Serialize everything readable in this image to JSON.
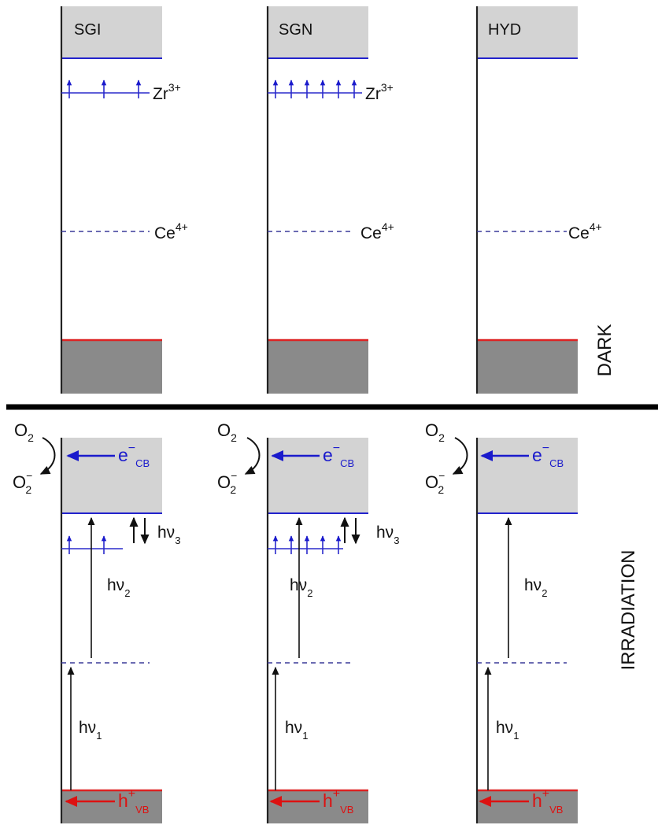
{
  "colors": {
    "conduction_band": "#d3d3d3",
    "valence_band": "#8a8a8a",
    "cb_edge": "#2222cc",
    "vb_edge": "#dd2222",
    "ce_level": "#3a3a99",
    "zr_level": "#2a2acc",
    "text": "#111111"
  },
  "samples": [
    {
      "name": "SGI",
      "zr_sites": 3
    },
    {
      "name": "SGN",
      "zr_sites": 6
    },
    {
      "name": "HYD",
      "zr_sites": 0
    }
  ],
  "levels": {
    "zr": {
      "base": "Zr",
      "sup": "3+"
    },
    "ce": {
      "base": "Ce",
      "sup": "4+"
    }
  },
  "panels": {
    "dark": "DARK",
    "irradiation": "IRRADIATION"
  },
  "labels": {
    "o2": {
      "base": "O",
      "sub": "2"
    },
    "o2_minus": {
      "base": "O",
      "sup": "−",
      "sub": "2"
    },
    "electron": {
      "base": "e",
      "sup": "−",
      "sub": "CB"
    },
    "hole": {
      "base": "h",
      "sup": "+",
      "sub": "VB"
    },
    "hv1": {
      "base": "hν",
      "sub": "1"
    },
    "hv2": {
      "base": "hν",
      "sub": "2"
    },
    "hv3": {
      "base": "hν",
      "sub": "3"
    }
  }
}
